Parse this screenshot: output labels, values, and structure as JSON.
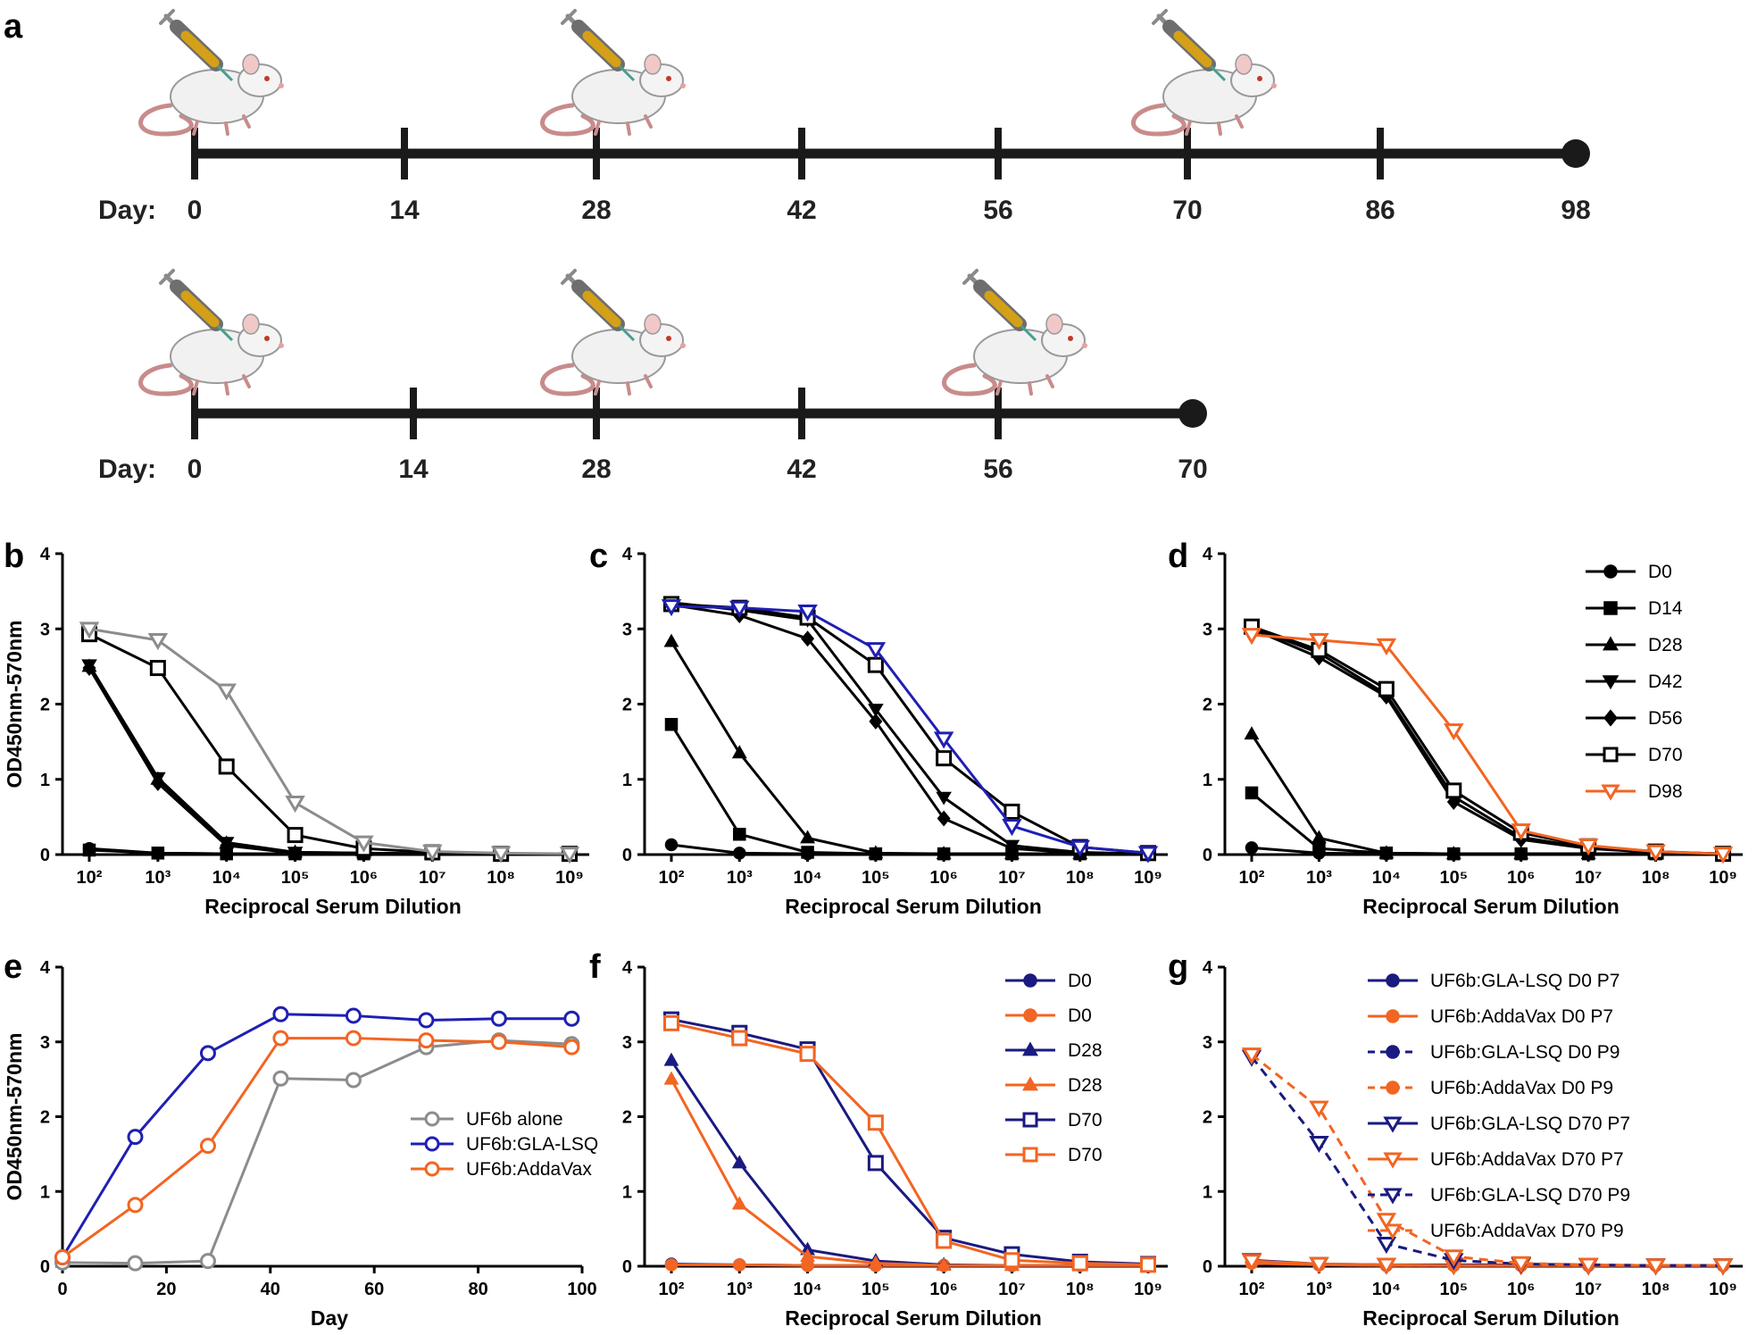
{
  "panel_a": {
    "letter": "a",
    "timelines": [
      {
        "day_label": "Day:",
        "days": [
          0,
          14,
          28,
          42,
          56,
          70,
          86,
          98
        ],
        "injection_days": [
          0,
          28,
          70
        ]
      },
      {
        "day_label": "Day:",
        "days": [
          0,
          14,
          28,
          42,
          56,
          70
        ],
        "injection_days": [
          0,
          28,
          56
        ]
      }
    ]
  },
  "colors": {
    "black": "#000000",
    "gray": "#8c8c8c",
    "blue": "#1f1fb4",
    "navy": "#1a1a80",
    "orange": "#f26522"
  },
  "icons": [
    "mouse-icon",
    "syringe-icon"
  ],
  "chart_data": [
    {
      "panel": "b",
      "type": "line",
      "x_scale": "log10",
      "x": [
        100,
        1000,
        10000,
        100000,
        1000000,
        10000000,
        100000000,
        1000000000
      ],
      "x_tick_labels": [
        "10²",
        "10³",
        "10⁴",
        "10⁵",
        "10⁶",
        "10⁷",
        "10⁸",
        "10⁹"
      ],
      "ylim": [
        0,
        4
      ],
      "y_ticks": [
        "0",
        "1",
        "2",
        "3",
        "4"
      ],
      "ylabel": "OD450nm-570nm",
      "xlabel": "Reciprocal Serum Dilution",
      "series": [
        {
          "color": "#000000",
          "marker": "circle",
          "values": [
            0.08,
            0.02,
            0.01,
            0.01,
            0.01,
            0.01,
            0.01,
            0.01
          ]
        },
        {
          "color": "#000000",
          "marker": "square",
          "values": [
            0.06,
            0.02,
            0.01,
            0.01,
            0.01,
            0.01,
            0.01,
            0.01
          ]
        },
        {
          "color": "#000000",
          "marker": "triangle",
          "values": [
            2.5,
            1.0,
            0.15,
            0.03,
            0.02,
            0.01,
            0.01,
            0.01
          ]
        },
        {
          "color": "#000000",
          "marker": "triangle-down",
          "values": [
            2.52,
            1.02,
            0.16,
            0.03,
            0.02,
            0.01,
            0.01,
            0.01
          ]
        },
        {
          "color": "#000000",
          "marker": "diamond",
          "values": [
            2.48,
            0.95,
            0.12,
            0.02,
            0.02,
            0.01,
            0.01,
            0.01
          ]
        },
        {
          "color": "#000000",
          "marker": "open-square",
          "values": [
            2.93,
            2.48,
            1.17,
            0.26,
            0.08,
            0.03,
            0.01,
            0.01
          ]
        },
        {
          "color": "#8c8c8c",
          "marker": "open-triangle-down",
          "values": [
            3.0,
            2.85,
            2.18,
            0.69,
            0.16,
            0.04,
            0.02,
            0.01
          ]
        }
      ]
    },
    {
      "panel": "c",
      "type": "line",
      "x_scale": "log10",
      "x": [
        100,
        1000,
        10000,
        100000,
        1000000,
        10000000,
        100000000,
        1000000000
      ],
      "x_tick_labels": [
        "10²",
        "10³",
        "10⁴",
        "10⁵",
        "10⁶",
        "10⁷",
        "10⁸",
        "10⁹"
      ],
      "ylim": [
        0,
        4
      ],
      "y_ticks": [
        "0",
        "1",
        "2",
        "3",
        "4"
      ],
      "xlabel": "Reciprocal Serum Dilution",
      "series": [
        {
          "color": "#000000",
          "marker": "circle",
          "values": [
            0.13,
            0.02,
            0.01,
            0.01,
            0.01,
            0.01,
            0.01,
            0.01
          ]
        },
        {
          "color": "#000000",
          "marker": "square",
          "values": [
            1.73,
            0.27,
            0.03,
            0.01,
            0.01,
            0.01,
            0.01,
            0.01
          ]
        },
        {
          "color": "#000000",
          "marker": "triangle",
          "values": [
            2.83,
            1.35,
            0.22,
            0.02,
            0.01,
            0.01,
            0.01,
            0.01
          ]
        },
        {
          "color": "#000000",
          "marker": "triangle-down",
          "values": [
            3.35,
            3.25,
            3.12,
            1.93,
            0.76,
            0.12,
            0.03,
            0.01
          ]
        },
        {
          "color": "#000000",
          "marker": "diamond",
          "values": [
            3.32,
            3.18,
            2.87,
            1.77,
            0.48,
            0.08,
            0.02,
            0.01
          ]
        },
        {
          "color": "#000000",
          "marker": "open-square",
          "values": [
            3.33,
            3.28,
            3.15,
            2.52,
            1.28,
            0.57,
            0.1,
            0.02
          ]
        },
        {
          "color": "#1f1fb4",
          "marker": "open-triangle-down",
          "values": [
            3.3,
            3.28,
            3.23,
            2.73,
            1.54,
            0.38,
            0.1,
            0.02
          ]
        }
      ]
    },
    {
      "panel": "d",
      "type": "line",
      "x_scale": "log10",
      "x": [
        100,
        1000,
        10000,
        100000,
        1000000,
        10000000,
        100000000,
        1000000000
      ],
      "x_tick_labels": [
        "10²",
        "10³",
        "10⁴",
        "10⁵",
        "10⁶",
        "10⁷",
        "10⁸",
        "10⁹"
      ],
      "ylim": [
        0,
        4
      ],
      "y_ticks": [
        "0",
        "1",
        "2",
        "3",
        "4"
      ],
      "xlabel": "Reciprocal Serum Dilution",
      "legend": {
        "position": "right"
      },
      "series": [
        {
          "name": "D0",
          "color": "#000000",
          "marker": "circle",
          "values": [
            0.09,
            0.02,
            0.01,
            0.01,
            0.01,
            0.01,
            0.01,
            0.01
          ]
        },
        {
          "name": "D14",
          "color": "#000000",
          "marker": "square",
          "values": [
            0.82,
            0.08,
            0.02,
            0.01,
            0.01,
            0.01,
            0.01,
            0.01
          ]
        },
        {
          "name": "D28",
          "color": "#000000",
          "marker": "triangle",
          "values": [
            1.6,
            0.22,
            0.02,
            0.01,
            0.01,
            0.01,
            0.01,
            0.01
          ]
        },
        {
          "name": "D42",
          "color": "#000000",
          "marker": "triangle-down",
          "values": [
            3.02,
            2.68,
            2.13,
            0.77,
            0.23,
            0.09,
            0.03,
            0.01
          ]
        },
        {
          "name": "D56",
          "color": "#000000",
          "marker": "diamond",
          "values": [
            3.0,
            2.62,
            2.1,
            0.7,
            0.2,
            0.08,
            0.03,
            0.01
          ]
        },
        {
          "name": "D70",
          "color": "#000000",
          "marker": "open-square",
          "values": [
            3.03,
            2.72,
            2.2,
            0.85,
            0.29,
            0.11,
            0.04,
            0.01
          ]
        },
        {
          "name": "D98",
          "color": "#f26522",
          "marker": "open-triangle-down",
          "values": [
            2.92,
            2.85,
            2.78,
            1.65,
            0.32,
            0.12,
            0.04,
            0.01
          ]
        }
      ]
    },
    {
      "panel": "e",
      "type": "line",
      "x_scale": "linear",
      "xlim": [
        0,
        100
      ],
      "x_ticks": [
        "0",
        "20",
        "40",
        "60",
        "80",
        "100"
      ],
      "ylim": [
        0,
        4
      ],
      "y_ticks": [
        "0",
        "1",
        "2",
        "3",
        "4"
      ],
      "ylabel": "OD450nm-570nm",
      "xlabel": "Day",
      "legend": {
        "position": "center"
      },
      "series": [
        {
          "name": "UF6b alone",
          "color": "#8c8c8c",
          "marker": "open-circle",
          "x": [
            0,
            14,
            28,
            42,
            56,
            70,
            84,
            98
          ],
          "values": [
            0.05,
            0.04,
            0.07,
            2.51,
            2.49,
            2.93,
            3.02,
            2.97
          ]
        },
        {
          "name": "UF6b:GLA-LSQ",
          "color": "#1f1fb4",
          "marker": "open-circle",
          "x": [
            0,
            14,
            28,
            42,
            56,
            70,
            84,
            98
          ],
          "values": [
            0.12,
            1.73,
            2.85,
            3.37,
            3.35,
            3.29,
            3.31,
            3.31
          ]
        },
        {
          "name": "UF6b:AddaVax",
          "color": "#f26522",
          "marker": "open-circle",
          "x": [
            0,
            14,
            28,
            42,
            56,
            70,
            84,
            98
          ],
          "values": [
            0.12,
            0.82,
            1.61,
            3.05,
            3.05,
            3.02,
            3.0,
            2.93
          ]
        }
      ]
    },
    {
      "panel": "f",
      "type": "line",
      "x_scale": "log10",
      "x": [
        100,
        1000,
        10000,
        100000,
        1000000,
        10000000,
        100000000,
        1000000000
      ],
      "x_tick_labels": [
        "10²",
        "10³",
        "10⁴",
        "10⁵",
        "10⁶",
        "10⁷",
        "10⁸",
        "10⁹"
      ],
      "ylim": [
        0,
        4
      ],
      "y_ticks": [
        "0",
        "1",
        "2",
        "3",
        "4"
      ],
      "xlabel": "Reciprocal Serum Dilution",
      "legend": {
        "position": "right"
      },
      "series": [
        {
          "name": "D0",
          "color": "#1a1a80",
          "marker": "circle",
          "values": [
            0.03,
            0.02,
            0.01,
            0.01,
            0.01,
            0.01,
            0.01,
            0.01
          ]
        },
        {
          "name": "D0",
          "color": "#f26522",
          "marker": "circle",
          "values": [
            0.02,
            0.02,
            0.01,
            0.01,
            0.01,
            0.01,
            0.01,
            0.01
          ]
        },
        {
          "name": "D28",
          "color": "#1a1a80",
          "marker": "triangle",
          "values": [
            2.75,
            1.38,
            0.22,
            0.07,
            0.02,
            0.01,
            0.01,
            0.01
          ]
        },
        {
          "name": "D28",
          "color": "#f26522",
          "marker": "triangle",
          "values": [
            2.5,
            0.83,
            0.13,
            0.04,
            0.01,
            0.01,
            0.01,
            0.01
          ]
        },
        {
          "name": "D70",
          "color": "#1a1a80",
          "marker": "open-square",
          "values": [
            3.3,
            3.12,
            2.9,
            1.38,
            0.38,
            0.16,
            0.06,
            0.03
          ]
        },
        {
          "name": "D70",
          "color": "#f26522",
          "marker": "open-square",
          "values": [
            3.25,
            3.05,
            2.84,
            1.92,
            0.34,
            0.08,
            0.04,
            0.02
          ]
        }
      ]
    },
    {
      "panel": "g",
      "type": "line",
      "x_scale": "log10",
      "x": [
        100,
        1000,
        10000,
        100000,
        1000000,
        10000000,
        100000000,
        1000000000
      ],
      "x_tick_labels": [
        "10²",
        "10³",
        "10⁴",
        "10⁵",
        "10⁶",
        "10⁷",
        "10⁸",
        "10⁹"
      ],
      "ylim": [
        0,
        4
      ],
      "y_ticks": [
        "0",
        "1",
        "2",
        "3",
        "4"
      ],
      "xlabel": "Reciprocal Serum Dilution",
      "legend": {
        "position": "top-right"
      },
      "series": [
        {
          "name": "UF6b:GLA-LSQ D0 P7",
          "color": "#1a1a80",
          "marker": "circle",
          "dash": false,
          "values": [
            0.05,
            0.02,
            0.01,
            0.01,
            0.01,
            0.01,
            0.01,
            0.01
          ]
        },
        {
          "name": "UF6b:AddaVax D0 P7",
          "color": "#f26522",
          "marker": "circle",
          "dash": false,
          "values": [
            0.04,
            0.02,
            0.01,
            0.01,
            0.01,
            0.01,
            0.01,
            0.01
          ]
        },
        {
          "name": "UF6b:GLA-LSQ D0 P9",
          "color": "#1a1a80",
          "marker": "circle",
          "dash": true,
          "values": [
            0.06,
            0.02,
            0.01,
            0.01,
            0.01,
            0.01,
            0.01,
            0.01
          ]
        },
        {
          "name": "UF6b:AddaVax D0 P9",
          "color": "#f26522",
          "marker": "circle",
          "dash": true,
          "values": [
            0.05,
            0.02,
            0.01,
            0.01,
            0.01,
            0.01,
            0.01,
            0.01
          ]
        },
        {
          "name": "UF6b:GLA-LSQ D70 P7",
          "color": "#1a1a80",
          "marker": "open-triangle-down",
          "dash": false,
          "values": [
            0.08,
            0.03,
            0.02,
            0.02,
            0.02,
            0.01,
            0.01,
            0.01
          ]
        },
        {
          "name": "UF6b:AddaVax D70 P7",
          "color": "#f26522",
          "marker": "open-triangle-down",
          "dash": false,
          "values": [
            0.07,
            0.03,
            0.02,
            0.01,
            0.01,
            0.01,
            0.01,
            0.01
          ]
        },
        {
          "name": "UF6b:GLA-LSQ D70 P9",
          "color": "#1a1a80",
          "marker": "open-triangle-down",
          "dash": true,
          "values": [
            2.8,
            1.65,
            0.3,
            0.08,
            0.03,
            0.02,
            0.01,
            0.01
          ]
        },
        {
          "name": "UF6b:AddaVax D70 P9",
          "color": "#f26522",
          "marker": "open-triangle-down",
          "dash": true,
          "values": [
            2.83,
            2.12,
            0.62,
            0.13,
            0.04,
            0.02,
            0.01,
            0.01
          ]
        }
      ]
    }
  ]
}
